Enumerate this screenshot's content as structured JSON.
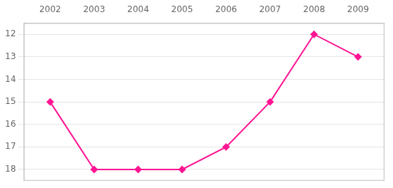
{
  "chart_data": {
    "type": "line",
    "x": [
      2002,
      2003,
      2004,
      2005,
      2006,
      2007,
      2008,
      2009
    ],
    "values": [
      15,
      18,
      18,
      18,
      17,
      15,
      12,
      13
    ],
    "color": "#FF1493",
    "marker": "diamond",
    "xlim": [
      2001.4,
      2009.6
    ],
    "ylim": [
      18.5,
      11.5
    ],
    "xticks": [
      2002,
      2003,
      2004,
      2005,
      2006,
      2007,
      2008,
      2009
    ],
    "yticks": [
      12,
      13,
      14,
      15,
      16,
      17,
      18
    ],
    "grid": "y"
  }
}
